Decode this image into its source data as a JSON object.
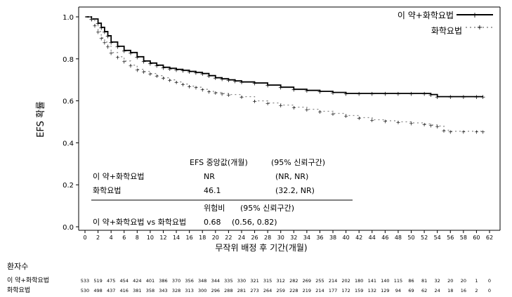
{
  "chart_data": {
    "type": "line",
    "title": "",
    "xlabel": "무작위 배정 후 기간(개월)",
    "ylabel": "EFS 확률",
    "xlim": [
      0,
      62
    ],
    "ylim": [
      0,
      1.0
    ],
    "x_ticks": [
      0,
      2,
      4,
      6,
      8,
      10,
      12,
      14,
      16,
      18,
      20,
      22,
      24,
      26,
      28,
      30,
      32,
      34,
      36,
      38,
      40,
      42,
      44,
      46,
      48,
      50,
      52,
      54,
      56,
      58,
      60,
      62
    ],
    "y_ticks": [
      0.0,
      0.2,
      0.4,
      0.6,
      0.8,
      1.0
    ],
    "legend_position": "top-right",
    "series": [
      {
        "name": "이 약+화학요법",
        "style": "solid-black",
        "x": [
          0,
          1,
          2,
          2.5,
          3,
          3.5,
          4,
          5,
          6,
          7,
          8,
          9,
          10,
          11,
          12,
          13,
          14,
          15,
          16,
          17,
          18,
          19,
          20,
          21,
          22,
          23,
          24,
          26,
          28,
          30,
          32,
          34,
          36,
          38,
          40,
          42,
          44,
          46,
          48,
          50,
          52,
          53,
          54,
          56,
          58,
          60,
          61
        ],
        "y": [
          1.0,
          0.99,
          0.97,
          0.95,
          0.93,
          0.91,
          0.88,
          0.86,
          0.84,
          0.83,
          0.81,
          0.79,
          0.78,
          0.77,
          0.76,
          0.755,
          0.75,
          0.745,
          0.74,
          0.735,
          0.73,
          0.72,
          0.71,
          0.705,
          0.7,
          0.695,
          0.69,
          0.685,
          0.675,
          0.665,
          0.655,
          0.65,
          0.645,
          0.64,
          0.635,
          0.635,
          0.635,
          0.635,
          0.635,
          0.635,
          0.635,
          0.63,
          0.62,
          0.62,
          0.62,
          0.62,
          0.62
        ]
      },
      {
        "name": "화학요법",
        "style": "dotted-gray",
        "x": [
          0,
          1,
          1.5,
          2,
          2.5,
          3,
          3.5,
          4,
          5,
          6,
          7,
          8,
          9,
          10,
          11,
          12,
          13,
          14,
          15,
          16,
          17,
          18,
          19,
          20,
          21,
          22,
          24,
          26,
          28,
          30,
          32,
          34,
          36,
          38,
          40,
          42,
          44,
          46,
          48,
          50,
          52,
          53,
          54,
          55,
          56,
          58,
          60,
          61
        ],
        "y": [
          1.0,
          0.99,
          0.96,
          0.93,
          0.9,
          0.88,
          0.86,
          0.83,
          0.81,
          0.79,
          0.77,
          0.75,
          0.74,
          0.73,
          0.72,
          0.71,
          0.7,
          0.69,
          0.68,
          0.67,
          0.665,
          0.655,
          0.645,
          0.64,
          0.635,
          0.63,
          0.62,
          0.6,
          0.59,
          0.58,
          0.57,
          0.56,
          0.55,
          0.54,
          0.53,
          0.52,
          0.51,
          0.505,
          0.5,
          0.495,
          0.49,
          0.485,
          0.48,
          0.46,
          0.455,
          0.455,
          0.455,
          0.455
        ]
      }
    ],
    "stats_table": {
      "header_median": "EFS 중앙값(개월)",
      "header_ci": "(95% 신뢰구간)",
      "rows": [
        {
          "label": "이 약+화학요법",
          "median": "NR",
          "ci": "(NR, NR)"
        },
        {
          "label": "화학요법",
          "median": "46.1",
          "ci": "(32.2, NR)"
        }
      ],
      "hr_header": "위험비",
      "hr_ci_header": "(95% 신뢰구간)",
      "hr_label": "이 약+화학요법 vs 화학요법",
      "hr_value": "0.68",
      "hr_ci": "(0.56, 0.82)"
    },
    "at_risk": {
      "title": "환자수",
      "rows": [
        {
          "label": "이 약+화학요법",
          "values": [
            "533",
            "519",
            "475",
            "454",
            "424",
            "401",
            "386",
            "370",
            "356",
            "348",
            "344",
            "335",
            "330",
            "321",
            "315",
            "312",
            "282",
            "269",
            "255",
            "214",
            "202",
            "180",
            "141",
            "140",
            "115",
            "86",
            "81",
            "32",
            "20",
            "20",
            "1",
            "0"
          ]
        },
        {
          "label": "화학요법",
          "values": [
            "530",
            "498",
            "437",
            "416",
            "381",
            "358",
            "343",
            "328",
            "313",
            "300",
            "296",
            "288",
            "281",
            "273",
            "264",
            "259",
            "228",
            "219",
            "214",
            "177",
            "172",
            "159",
            "132",
            "129",
            "94",
            "69",
            "62",
            "24",
            "18",
            "16",
            "2",
            "0"
          ]
        }
      ]
    }
  }
}
